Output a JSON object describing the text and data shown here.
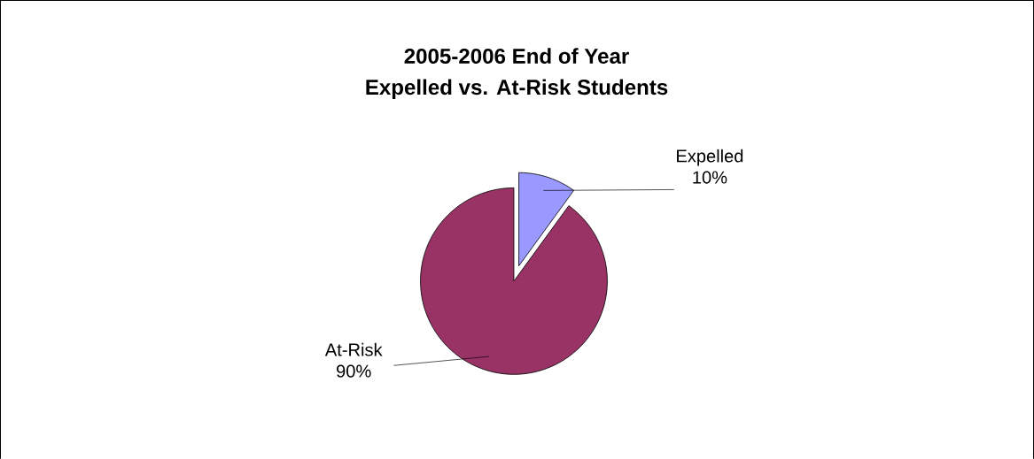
{
  "chart_data": {
    "type": "pie",
    "title": "2005-2006 End of Year",
    "subtitle": "Expelled vs. At-Risk Students",
    "categories": [
      "Expelled",
      "At-Risk"
    ],
    "values": [
      10,
      90
    ],
    "value_labels": [
      "10%",
      "90%"
    ],
    "colors": [
      "#9999ff",
      "#993366"
    ]
  }
}
